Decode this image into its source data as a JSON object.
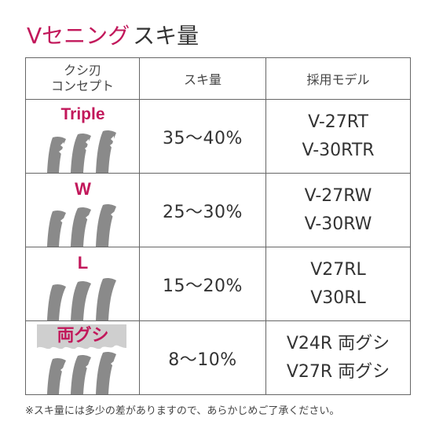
{
  "title": {
    "accent": "Vセニング",
    "rest": "スキ量"
  },
  "table": {
    "headers": {
      "concept_line1": "クシ刃",
      "concept_line2": "コンセプト",
      "amount": "スキ量",
      "models": "採用モデル"
    },
    "rows": [
      {
        "concept": "Triple",
        "amount": "35〜40%",
        "models": [
          "V-27RT",
          "V-30RTR"
        ]
      },
      {
        "concept": "W",
        "amount": "25〜30%",
        "models": [
          "V-27RW",
          "V-30RW"
        ]
      },
      {
        "concept": "L",
        "amount": "15〜20%",
        "models": [
          "V27RL",
          "V30RL"
        ]
      },
      {
        "concept": "両グシ",
        "amount": "8〜10%",
        "models": [
          "V24R 両グシ",
          "V27R 両グシ"
        ]
      }
    ]
  },
  "footnote": "※スキ量には多少の差がありますので、あらかじめご了承ください。",
  "colors": {
    "accent": "#c2185b",
    "text": "#333333",
    "border": "#666666",
    "teeth": "#8a8a8a"
  }
}
